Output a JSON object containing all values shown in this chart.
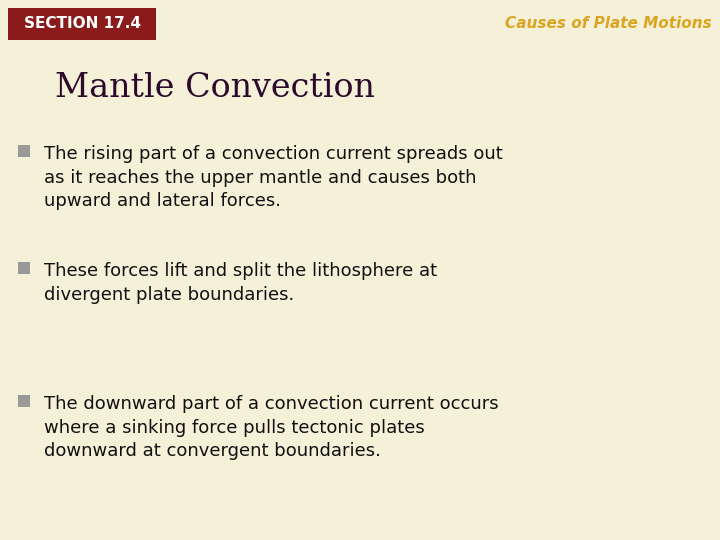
{
  "background_color": "#f5f0d8",
  "section_box_color": "#8B1A1A",
  "section_text": "Section 17.4",
  "section_text_color": "#ffffff",
  "header_text": "Causes of Plate Motions",
  "header_text_color": "#DAA520",
  "title_text": "Mantle Convection",
  "title_color": "#2b0a2b",
  "bullet_color": "#999999",
  "body_color": "#111111",
  "bullet_points": [
    "The rising part of a convection current spreads out\nas it reaches the upper mantle and causes both\nupward and lateral forces.",
    "These forces lift and split the lithosphere at\ndivergent plate boundaries.",
    "The downward part of a convection current occurs\nwhere a sinking force pulls tectonic plates\ndownward at convergent boundaries."
  ],
  "section_fontsize": 11,
  "header_fontsize": 11,
  "title_fontsize": 24,
  "body_fontsize": 13
}
